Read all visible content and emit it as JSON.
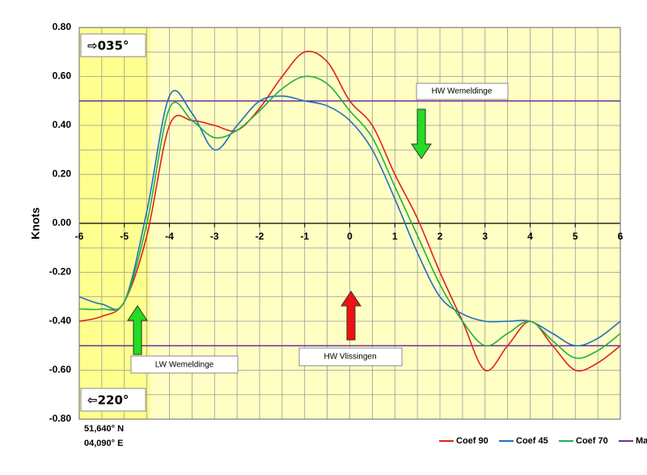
{
  "chart_data": {
    "type": "line",
    "y_label": "Knots",
    "x": [
      -6,
      -5.5,
      -5,
      -4.5,
      -4,
      -3.5,
      -3,
      -2.5,
      -2,
      -1.5,
      -1,
      -0.5,
      0,
      0.5,
      1,
      1.5,
      2,
      2.5,
      3,
      3.5,
      4,
      4.5,
      5,
      5.5,
      6
    ],
    "series": [
      {
        "name": "Coef 90",
        "color": "#e02020",
        "values": [
          -0.4,
          -0.38,
          -0.32,
          -0.05,
          0.4,
          0.42,
          0.4,
          0.38,
          0.47,
          0.6,
          0.7,
          0.66,
          0.5,
          0.4,
          0.2,
          0.02,
          -0.2,
          -0.4,
          -0.6,
          -0.5,
          -0.4,
          -0.5,
          -0.6,
          -0.57,
          -0.5
        ]
      },
      {
        "name": "Coef 45",
        "color": "#1f6fc0",
        "values": [
          -0.3,
          -0.33,
          -0.32,
          0.05,
          0.52,
          0.45,
          0.3,
          0.4,
          0.5,
          0.52,
          0.5,
          0.48,
          0.42,
          0.3,
          0.1,
          -0.12,
          -0.3,
          -0.37,
          -0.4,
          -0.4,
          -0.4,
          -0.45,
          -0.5,
          -0.47,
          -0.4
        ]
      },
      {
        "name": "Coef 70",
        "color": "#20b040",
        "values": [
          -0.35,
          -0.35,
          -0.32,
          0.0,
          0.47,
          0.42,
          0.35,
          0.38,
          0.46,
          0.55,
          0.6,
          0.57,
          0.46,
          0.35,
          0.15,
          -0.05,
          -0.25,
          -0.4,
          -0.5,
          -0.45,
          -0.4,
          -0.48,
          -0.55,
          -0.52,
          -0.45
        ]
      }
    ],
    "max_lines": {
      "name": "Max",
      "color": "#7030a0",
      "values": [
        0.5,
        -0.5
      ]
    },
    "xlim": [
      -6,
      6
    ],
    "ylim": [
      -0.8,
      0.8
    ],
    "xticks": [
      -6,
      -5,
      -4,
      -3,
      -2,
      -1,
      0,
      1,
      2,
      3,
      4,
      5,
      6
    ],
    "yticks": [
      {
        "value": -0.8,
        "label": "-0.80"
      },
      {
        "value": -0.6,
        "label": "-0.60"
      },
      {
        "value": -0.4,
        "label": "-0.40"
      },
      {
        "value": -0.2,
        "label": "-0.20"
      },
      {
        "value": 0,
        "label": "0.00"
      },
      {
        "value": 0.2,
        "label": "0.20"
      },
      {
        "value": 0.4,
        "label": "0.40"
      },
      {
        "value": 0.6,
        "label": "0.60"
      },
      {
        "value": 0.8,
        "label": "0.80"
      }
    ],
    "grid": true,
    "legend": "bottom",
    "annotations": {
      "top_direction": "⇨035°",
      "bottom_direction": "⇦220°",
      "hw_wemeldinge": "HW Wemeldinge",
      "lw_wemeldinge": "LW Wemeldinge",
      "hw_vlissingen": "HW Vlissingen",
      "lat": "51,640° N",
      "lon": "04,090° E"
    }
  }
}
